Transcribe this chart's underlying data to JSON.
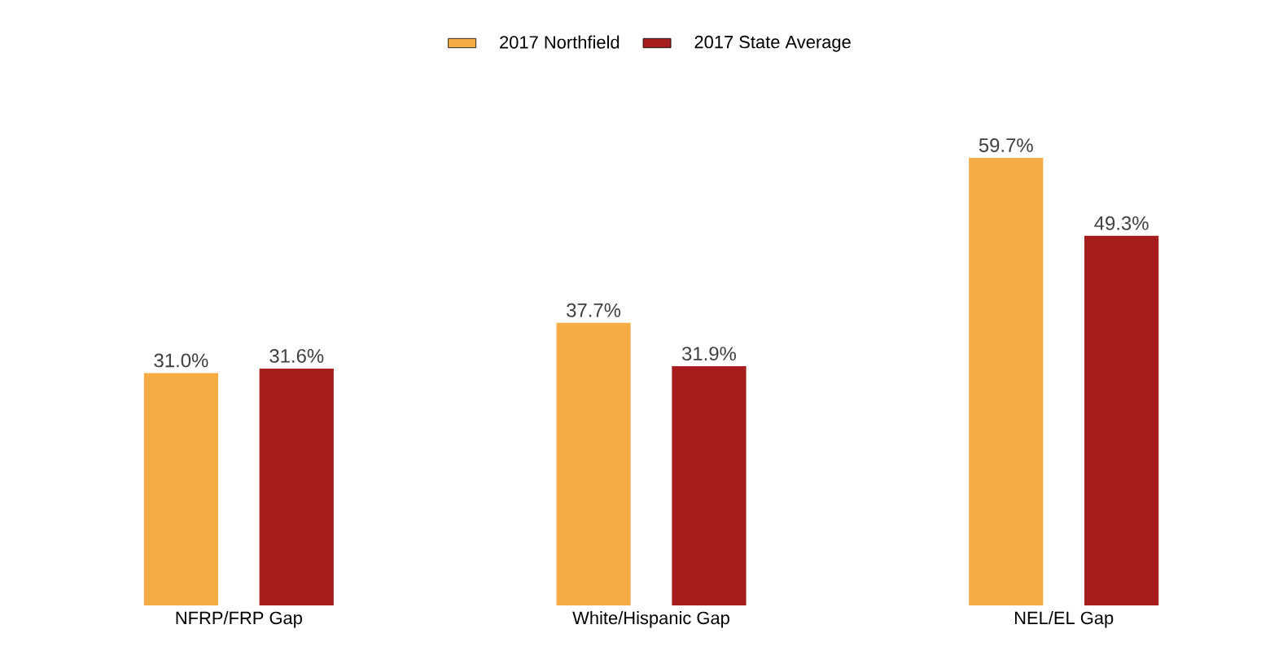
{
  "chart_data": {
    "type": "bar",
    "categories": [
      "NFRP/FRP Gap",
      "White/Hispanic Gap",
      "NEL/EL Gap"
    ],
    "legend": "top",
    "series": [
      {
        "name": "2017 Northfield",
        "color": "#f5ac45",
        "values": [
          31.0,
          37.7,
          59.7
        ],
        "value_labels": [
          "31.0%",
          "37.7%",
          "59.7%"
        ]
      },
      {
        "name": "2017 State Average",
        "color": "#a51d1d",
        "values": [
          31.6,
          31.9,
          49.3
        ],
        "value_labels": [
          "31.6%",
          "31.9%",
          "49.3%"
        ]
      }
    ]
  }
}
